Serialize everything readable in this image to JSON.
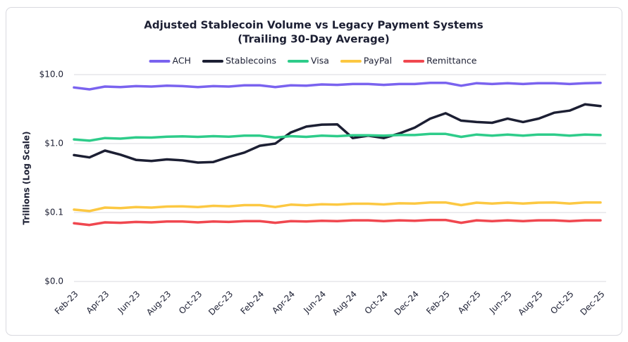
{
  "chart_data": {
    "type": "line",
    "title": "Adjusted Stablecoin Volume vs Legacy Payment Systems",
    "subtitle": "(Trailing 30-Day Average)",
    "ylabel": "Trillions (Log Scale)",
    "log_scale": true,
    "grid": true,
    "legend": "top",
    "categories": [
      "Feb-23",
      null,
      "Apr-23",
      null,
      "Jun-23",
      null,
      "Aug-23",
      null,
      "Oct-23",
      null,
      "Dec-23",
      null,
      "Feb-24",
      null,
      "Apr-24",
      null,
      "Jun-24",
      null,
      "Aug-24",
      null,
      "Oct-24",
      null,
      "Dec-24",
      null,
      "Feb-25",
      null,
      "Apr-25",
      null,
      "Jun-25",
      null,
      "Aug-25",
      null,
      "Oct-25",
      null,
      "Dec-25"
    ],
    "ylim": [
      0.01,
      10
    ],
    "yticks": [
      {
        "value": 10,
        "label": "$10.0"
      },
      {
        "value": 1,
        "label": "$1.0"
      },
      {
        "value": 0.1,
        "label": "$0.1"
      },
      {
        "value": 0.01,
        "label": "$0.0"
      }
    ],
    "series": [
      {
        "name": "ACH",
        "color": "#7a63ef",
        "values": [
          6.5,
          6.1,
          6.7,
          6.6,
          6.8,
          6.7,
          6.9,
          6.8,
          6.6,
          6.8,
          6.7,
          7.0,
          7.0,
          6.6,
          7.0,
          6.9,
          7.2,
          7.1,
          7.3,
          7.3,
          7.1,
          7.3,
          7.3,
          7.6,
          7.6,
          6.9,
          7.5,
          7.3,
          7.5,
          7.3,
          7.5,
          7.5,
          7.3,
          7.5,
          7.6
        ]
      },
      {
        "name": "Stablecoins",
        "color": "#1c1f33",
        "values": [
          0.68,
          0.63,
          0.79,
          0.69,
          0.58,
          0.56,
          0.59,
          0.57,
          0.53,
          0.54,
          0.64,
          0.74,
          0.93,
          1.0,
          1.45,
          1.76,
          1.88,
          1.9,
          1.2,
          1.3,
          1.2,
          1.4,
          1.7,
          2.3,
          2.75,
          2.15,
          2.05,
          2.0,
          2.3,
          2.05,
          2.3,
          2.8,
          3.0,
          3.7,
          3.5
        ]
      },
      {
        "name": "Visa",
        "color": "#2ecc8a",
        "values": [
          1.15,
          1.1,
          1.2,
          1.18,
          1.23,
          1.22,
          1.26,
          1.27,
          1.25,
          1.28,
          1.26,
          1.3,
          1.3,
          1.22,
          1.28,
          1.25,
          1.3,
          1.28,
          1.32,
          1.32,
          1.3,
          1.33,
          1.33,
          1.38,
          1.38,
          1.25,
          1.35,
          1.3,
          1.35,
          1.3,
          1.35,
          1.35,
          1.3,
          1.35,
          1.33
        ]
      },
      {
        "name": "PayPal",
        "color": "#fcc842",
        "values": [
          0.11,
          0.105,
          0.118,
          0.116,
          0.12,
          0.118,
          0.122,
          0.123,
          0.12,
          0.125,
          0.123,
          0.128,
          0.128,
          0.12,
          0.13,
          0.127,
          0.132,
          0.13,
          0.134,
          0.134,
          0.131,
          0.136,
          0.135,
          0.14,
          0.14,
          0.128,
          0.139,
          0.135,
          0.139,
          0.135,
          0.139,
          0.14,
          0.135,
          0.14,
          0.14
        ]
      },
      {
        "name": "Remittance",
        "color": "#f0474f",
        "values": [
          0.07,
          0.066,
          0.072,
          0.071,
          0.073,
          0.072,
          0.074,
          0.074,
          0.072,
          0.074,
          0.073,
          0.075,
          0.075,
          0.071,
          0.075,
          0.074,
          0.076,
          0.075,
          0.077,
          0.077,
          0.075,
          0.077,
          0.076,
          0.078,
          0.078,
          0.071,
          0.077,
          0.075,
          0.077,
          0.075,
          0.077,
          0.077,
          0.075,
          0.077,
          0.077
        ]
      }
    ]
  }
}
